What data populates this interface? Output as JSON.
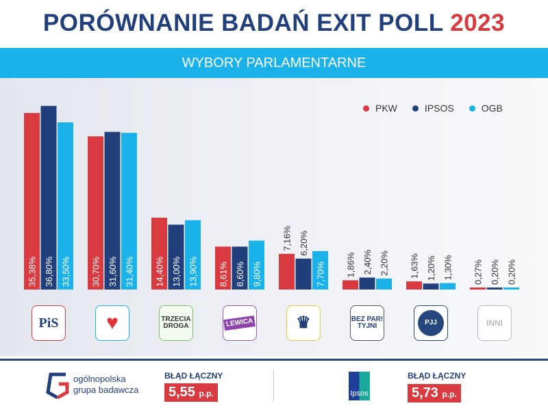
{
  "header": {
    "title": "PORÓWNANIE BADAŃ EXIT POLL",
    "year": "2023",
    "subtitle": "WYBORY PARLAMENTARNE"
  },
  "chart_data": {
    "type": "bar",
    "categories": [
      "PiS",
      "KO",
      "Trzecia Droga",
      "Lewica",
      "Konfederacja",
      "Bezpartyjni Samorządowcy",
      "PJJ",
      "Inni"
    ],
    "series": [
      {
        "name": "PKW",
        "color": "#d93a3f",
        "values": [
          35.38,
          30.7,
          14.4,
          8.61,
          7.16,
          1.86,
          1.63,
          0.27
        ],
        "labels": [
          "35,38%",
          "30,70%",
          "14,40%",
          "8,61%",
          "7,16%",
          "1,86%",
          "1,63%",
          "0,27%"
        ]
      },
      {
        "name": "IPSOS",
        "color": "#213f7a",
        "values": [
          36.8,
          31.6,
          13.0,
          8.6,
          6.2,
          2.4,
          1.2,
          0.2
        ],
        "labels": [
          "36,80%",
          "31,60%",
          "13,00%",
          "8,60%",
          "6,20%",
          "2,40%",
          "1,20%",
          "0,20%"
        ]
      },
      {
        "name": "OGB",
        "color": "#1ab2e8",
        "values": [
          33.5,
          31.4,
          13.9,
          9.8,
          7.7,
          2.2,
          1.3,
          0.2
        ],
        "labels": [
          "33,50%",
          "31,40%",
          "13,90%",
          "9,80%",
          "7,70%",
          "2,20%",
          "1,30%",
          "0,20%"
        ]
      }
    ],
    "legend": "top-right",
    "grid": false,
    "ylim": [
      0,
      40
    ]
  },
  "logos": [
    {
      "text": "PiS",
      "color": "#d93a3f",
      "textcolor": "#213f7a",
      "bg": "#fff"
    },
    {
      "text": "♥",
      "color": "#1ab2e8",
      "textcolor": "#e1343d",
      "bg": "#fff"
    },
    {
      "text": "TRZECIA DROGA",
      "color": "#7cc46b",
      "textcolor": "#333",
      "bg": "#f4fbf1"
    },
    {
      "text": "LEWICA",
      "color": "#9b59b6",
      "textcolor": "#fff",
      "bg": "#fff"
    },
    {
      "text": "♛",
      "color": "#f0c040",
      "textcolor": "#213f7a",
      "bg": "#fff"
    },
    {
      "text": "BEZ PAR! TYJNI",
      "color": "#555",
      "textcolor": "#213f7a",
      "bg": "#fff"
    },
    {
      "text": "PJJ",
      "color": "#26477e",
      "textcolor": "#fff",
      "bg": "#fff"
    },
    {
      "text": "INNI",
      "color": "#bbb",
      "textcolor": "#bbb",
      "bg": "#fff"
    }
  ],
  "footer": {
    "ogb": {
      "line1": "ogólnopolska",
      "line2": "grupa badawcza",
      "error_label": "BŁĄD ŁĄCZNY",
      "error_value": "5,55",
      "unit": "p.p."
    },
    "ipsos": {
      "logo_text": "Ipsos",
      "error_label": "BŁĄD ŁĄCZNY",
      "error_value": "5,73",
      "unit": "p.p."
    }
  }
}
